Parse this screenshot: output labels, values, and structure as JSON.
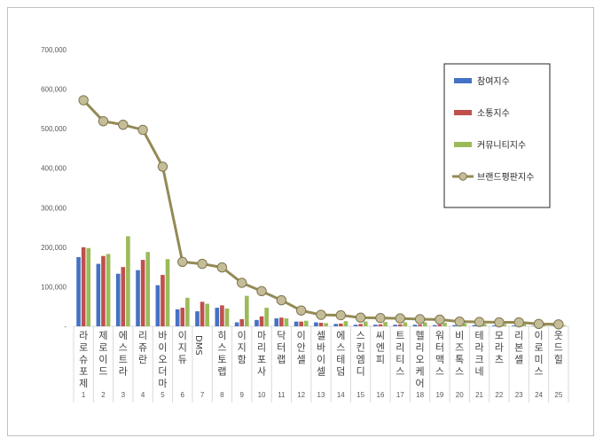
{
  "chart_data": {
    "type": "bar",
    "title": "",
    "xlabel": "",
    "ylabel": "",
    "ylim": [
      0,
      700000
    ],
    "yticks": [
      "-",
      "100,000",
      "200,000",
      "300,000",
      "400,000",
      "500,000",
      "600,000",
      "700,000"
    ],
    "grid": false,
    "legend_position": "top-right",
    "ranks": [
      "1",
      "2",
      "3",
      "4",
      "5",
      "6",
      "7",
      "8",
      "9",
      "10",
      "11",
      "12",
      "13",
      "14",
      "15",
      "16",
      "17",
      "18",
      "19",
      "20",
      "21",
      "22",
      "23",
      "24",
      "25"
    ],
    "categories": [
      "라로슈포제",
      "제로이드",
      "에스트라",
      "리쥬란",
      "바이오더마",
      "이지듀",
      "DMS",
      "히스토랩",
      "이지함",
      "마리포사",
      "닥터랩",
      "이안셀",
      "셀바이셀",
      "에스테덤",
      "스킨엠디",
      "씨엔피",
      "트리티스",
      "헬리오케어",
      "워터맥스",
      "비즈톡스",
      "테라크네",
      "모라츠",
      "리본셀",
      "이로미스",
      "웃드힐"
    ],
    "series": [
      {
        "name": "참여지수",
        "kind": "bar",
        "color": "#4472c4",
        "values": [
          175000,
          158000,
          133000,
          142000,
          104000,
          43000,
          38000,
          47000,
          10000,
          16000,
          20000,
          12000,
          10000,
          6000,
          4000,
          4000,
          4000,
          4000,
          3000,
          3000,
          3000,
          2000,
          2000,
          1000,
          1000
        ]
      },
      {
        "name": "소통지수",
        "kind": "bar",
        "color": "#c0504d",
        "values": [
          200000,
          178000,
          150000,
          168000,
          130000,
          47000,
          62000,
          53000,
          18000,
          25000,
          22000,
          12000,
          9000,
          7000,
          6000,
          5000,
          5000,
          4000,
          4000,
          3000,
          3000,
          2000,
          2000,
          1000,
          1000
        ]
      },
      {
        "name": "커뮤니티지수",
        "kind": "bar",
        "color": "#9bbb59",
        "values": [
          198000,
          183000,
          228000,
          188000,
          170000,
          72000,
          57000,
          45000,
          77000,
          47000,
          20000,
          14000,
          8000,
          13000,
          12000,
          11000,
          10000,
          10000,
          9000,
          7000,
          6000,
          6000,
          6000,
          4000,
          3000
        ]
      },
      {
        "name": "브랜드평판지수",
        "kind": "line",
        "color": "#948a54",
        "values": [
          572000,
          519000,
          510000,
          497000,
          404000,
          163000,
          158000,
          149000,
          110000,
          89000,
          66000,
          40000,
          29000,
          28000,
          22000,
          21000,
          20000,
          18000,
          17000,
          12000,
          11000,
          10000,
          10000,
          6000,
          5000
        ]
      }
    ]
  }
}
